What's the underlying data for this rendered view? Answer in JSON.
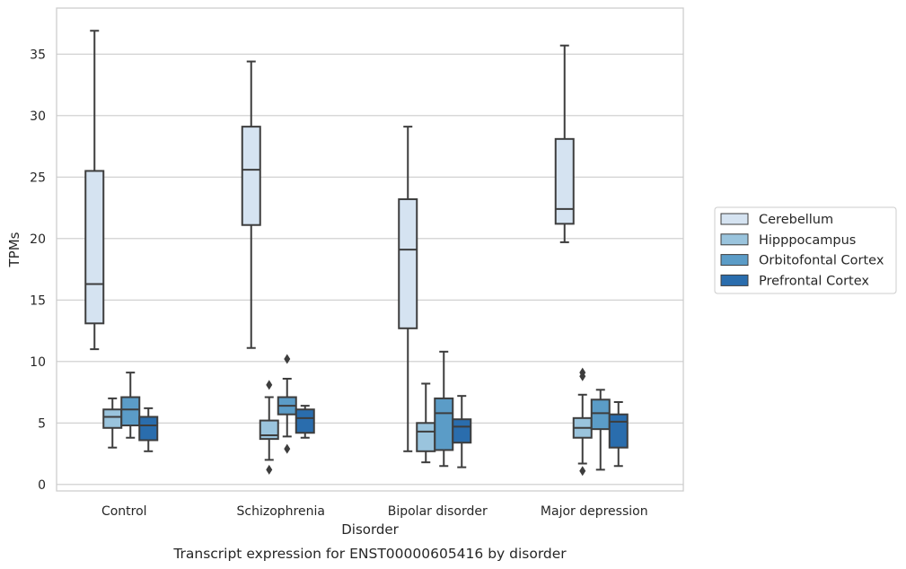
{
  "chart_data": {
    "type": "box",
    "title": "Transcript expression for ENST00000605416 by disorder",
    "xlabel": "Disorder",
    "ylabel": "TPMs",
    "ylim": [
      -0.5,
      38.5
    ],
    "yticks": [
      0,
      5,
      10,
      15,
      20,
      25,
      30,
      35
    ],
    "categories": [
      "Control",
      "Schizophrenia",
      "Bipolar disorder",
      "Major depression"
    ],
    "grid": true,
    "legend_position": "right",
    "series": [
      {
        "name": "Cerebellum",
        "color": "#d5e3f1",
        "boxes": [
          {
            "whislo": 11.0,
            "q1": 13.1,
            "med": 16.3,
            "q3": 25.5,
            "whishi": 36.9,
            "fliers": []
          },
          {
            "whislo": 11.1,
            "q1": 21.1,
            "med": 25.6,
            "q3": 29.1,
            "whishi": 34.4,
            "fliers": []
          },
          {
            "whislo": 2.7,
            "q1": 12.7,
            "med": 19.1,
            "q3": 23.2,
            "whishi": 29.1,
            "fliers": []
          },
          {
            "whislo": 19.7,
            "q1": 21.2,
            "med": 22.4,
            "q3": 28.1,
            "whishi": 35.7,
            "fliers": []
          }
        ]
      },
      {
        "name": "Hipppocampus",
        "color": "#9ac4dd",
        "boxes": [
          {
            "whislo": 3.0,
            "q1": 4.6,
            "med": 5.5,
            "q3": 6.1,
            "whishi": 7.0,
            "fliers": []
          },
          {
            "whislo": 2.0,
            "q1": 3.7,
            "med": 4.0,
            "q3": 5.2,
            "whishi": 7.1,
            "fliers": [
              8.1,
              1.2
            ]
          },
          {
            "whislo": 1.8,
            "q1": 2.7,
            "med": 4.3,
            "q3": 5.0,
            "whishi": 8.2,
            "fliers": []
          },
          {
            "whislo": 1.7,
            "q1": 3.8,
            "med": 4.6,
            "q3": 5.4,
            "whishi": 7.3,
            "fliers": [
              9.1,
              8.8,
              1.1
            ]
          }
        ]
      },
      {
        "name": "Orbitofontal Cortex",
        "color": "#5b9cc7",
        "boxes": [
          {
            "whislo": 3.8,
            "q1": 4.8,
            "med": 6.1,
            "q3": 7.1,
            "whishi": 9.1,
            "fliers": []
          },
          {
            "whislo": 3.9,
            "q1": 5.7,
            "med": 6.4,
            "q3": 7.1,
            "whishi": 8.6,
            "fliers": [
              10.2,
              2.9
            ]
          },
          {
            "whislo": 1.5,
            "q1": 2.8,
            "med": 5.8,
            "q3": 7.0,
            "whishi": 10.8,
            "fliers": []
          },
          {
            "whislo": 1.2,
            "q1": 4.5,
            "med": 5.8,
            "q3": 6.9,
            "whishi": 7.7,
            "fliers": []
          }
        ]
      },
      {
        "name": "Prefrontal Cortex",
        "color": "#2a6dad",
        "boxes": [
          {
            "whislo": 2.7,
            "q1": 3.6,
            "med": 4.8,
            "q3": 5.5,
            "whishi": 6.2,
            "fliers": []
          },
          {
            "whislo": 3.8,
            "q1": 4.2,
            "med": 5.4,
            "q3": 6.1,
            "whishi": 6.4,
            "fliers": []
          },
          {
            "whislo": 1.4,
            "q1": 3.4,
            "med": 4.7,
            "q3": 5.3,
            "whishi": 7.2,
            "fliers": []
          },
          {
            "whislo": 1.5,
            "q1": 3.0,
            "med": 5.1,
            "q3": 5.7,
            "whishi": 6.7,
            "fliers": []
          }
        ]
      }
    ]
  }
}
